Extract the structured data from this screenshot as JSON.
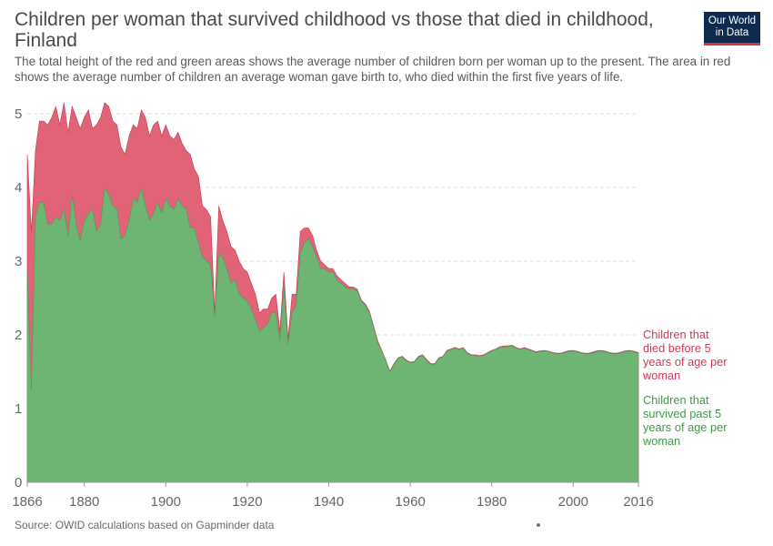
{
  "header": {
    "title": "Children per woman that survived childhood vs those that died in childhood, Finland",
    "subtitle": "The total height of the red and green areas shows the average number of children born per woman up to the present. The area in red shows the average number of children an average woman gave birth to, who died within the first five years of life.",
    "logo_line1": "Our World",
    "logo_line2": "in Data"
  },
  "footer": {
    "source": "Source: OWID calculations based on Gapminder data"
  },
  "colors": {
    "died": "#e06377",
    "died_line": "#c7374f",
    "survived": "#6eb574",
    "survived_line": "#4f9b58",
    "grid": "#dddddd"
  },
  "chart_data": {
    "type": "area",
    "stacked": true,
    "xlabel": "",
    "ylabel": "",
    "xlim": [
      1866,
      2016
    ],
    "ylim": [
      0,
      5
    ],
    "x_ticks": [
      "1866",
      "1880",
      "1900",
      "1920",
      "1940",
      "1960",
      "1980",
      "2000",
      "2016"
    ],
    "y_ticks": [
      "0",
      "1",
      "2",
      "3",
      "4",
      "5"
    ],
    "grid": "horizontal dashed",
    "legend": "right, inline labels",
    "series": [
      {
        "name": "Children that survived past 5 years of age per woman",
        "points": [
          [
            1866,
            2.85
          ],
          [
            1867,
            1.25
          ],
          [
            1868,
            3.6
          ],
          [
            1869,
            3.8
          ],
          [
            1870,
            3.8
          ],
          [
            1871,
            3.5
          ],
          [
            1872,
            3.5
          ],
          [
            1873,
            3.6
          ],
          [
            1874,
            3.55
          ],
          [
            1875,
            3.7
          ],
          [
            1876,
            3.35
          ],
          [
            1877,
            3.9
          ],
          [
            1878,
            3.5
          ],
          [
            1879,
            3.27
          ],
          [
            1880,
            3.55
          ],
          [
            1881,
            3.65
          ],
          [
            1882,
            3.7
          ],
          [
            1883,
            3.4
          ],
          [
            1884,
            3.5
          ],
          [
            1885,
            4.0
          ],
          [
            1886,
            3.9
          ],
          [
            1887,
            3.75
          ],
          [
            1888,
            3.7
          ],
          [
            1889,
            3.3
          ],
          [
            1890,
            3.35
          ],
          [
            1891,
            3.55
          ],
          [
            1892,
            3.85
          ],
          [
            1893,
            3.8
          ],
          [
            1894,
            4.0
          ],
          [
            1895,
            3.75
          ],
          [
            1896,
            3.55
          ],
          [
            1897,
            3.65
          ],
          [
            1898,
            3.8
          ],
          [
            1899,
            3.65
          ],
          [
            1900,
            3.85
          ],
          [
            1901,
            3.75
          ],
          [
            1902,
            3.7
          ],
          [
            1903,
            3.85
          ],
          [
            1904,
            3.75
          ],
          [
            1905,
            3.7
          ],
          [
            1906,
            3.45
          ],
          [
            1907,
            3.45
          ],
          [
            1908,
            3.25
          ],
          [
            1909,
            3.05
          ],
          [
            1910,
            3.0
          ],
          [
            1911,
            2.95
          ],
          [
            1912,
            2.25
          ],
          [
            1913,
            3.1
          ],
          [
            1914,
            3.05
          ],
          [
            1915,
            2.9
          ],
          [
            1916,
            2.7
          ],
          [
            1917,
            2.75
          ],
          [
            1918,
            2.55
          ],
          [
            1919,
            2.5
          ],
          [
            1920,
            2.45
          ],
          [
            1921,
            2.35
          ],
          [
            1922,
            2.2
          ],
          [
            1923,
            2.05
          ],
          [
            1924,
            2.1
          ],
          [
            1925,
            2.15
          ],
          [
            1926,
            2.3
          ],
          [
            1927,
            2.3
          ],
          [
            1928,
            1.92
          ],
          [
            1929,
            2.65
          ],
          [
            1930,
            1.87
          ],
          [
            1931,
            2.3
          ],
          [
            1932,
            2.4
          ],
          [
            1933,
            3.1
          ],
          [
            1934,
            3.25
          ],
          [
            1935,
            3.3
          ],
          [
            1936,
            3.2
          ],
          [
            1937,
            3.05
          ],
          [
            1938,
            2.9
          ],
          [
            1939,
            2.9
          ],
          [
            1940,
            2.85
          ],
          [
            1941,
            2.85
          ],
          [
            1942,
            2.75
          ],
          [
            1943,
            2.7
          ],
          [
            1944,
            2.65
          ],
          [
            1945,
            2.62
          ],
          [
            1946,
            2.62
          ],
          [
            1947,
            2.6
          ],
          [
            1948,
            2.45
          ],
          [
            1949,
            2.4
          ],
          [
            1950,
            2.3
          ],
          [
            1951,
            2.1
          ],
          [
            1952,
            1.9
          ],
          [
            1953,
            1.78
          ],
          [
            1954,
            1.65
          ],
          [
            1955,
            1.5
          ],
          [
            1956,
            1.6
          ],
          [
            1957,
            1.68
          ],
          [
            1958,
            1.7
          ],
          [
            1959,
            1.65
          ],
          [
            1960,
            1.62
          ],
          [
            1961,
            1.63
          ],
          [
            1962,
            1.7
          ],
          [
            1963,
            1.72
          ],
          [
            1964,
            1.66
          ],
          [
            1965,
            1.6
          ],
          [
            1966,
            1.6
          ],
          [
            1967,
            1.68
          ],
          [
            1968,
            1.7
          ],
          [
            1969,
            1.78
          ],
          [
            1970,
            1.8
          ],
          [
            1971,
            1.82
          ],
          [
            1972,
            1.8
          ],
          [
            1973,
            1.82
          ],
          [
            1974,
            1.75
          ],
          [
            1975,
            1.72
          ],
          [
            1976,
            1.72
          ],
          [
            1977,
            1.71
          ],
          [
            1978,
            1.72
          ],
          [
            1979,
            1.75
          ],
          [
            1980,
            1.78
          ],
          [
            1981,
            1.8
          ],
          [
            1982,
            1.83
          ],
          [
            1983,
            1.84
          ],
          [
            1984,
            1.84
          ],
          [
            1985,
            1.85
          ],
          [
            1986,
            1.82
          ],
          [
            1987,
            1.8
          ],
          [
            1988,
            1.82
          ],
          [
            1989,
            1.8
          ],
          [
            1990,
            1.78
          ],
          [
            1991,
            1.76
          ]
        ]
      },
      {
        "name": "Children that died before 5 years of age per woman",
        "points": [
          [
            1866,
            4.45
          ],
          [
            1867,
            3.4
          ],
          [
            1868,
            4.5
          ],
          [
            1869,
            4.9
          ],
          [
            1870,
            4.9
          ],
          [
            1871,
            4.85
          ],
          [
            1872,
            4.95
          ],
          [
            1873,
            5.1
          ],
          [
            1874,
            4.85
          ],
          [
            1875,
            5.15
          ],
          [
            1876,
            4.75
          ],
          [
            1877,
            5.1
          ],
          [
            1878,
            4.95
          ],
          [
            1879,
            4.8
          ],
          [
            1880,
            4.95
          ],
          [
            1881,
            5.05
          ],
          [
            1882,
            4.8
          ],
          [
            1883,
            4.85
          ],
          [
            1884,
            4.95
          ],
          [
            1885,
            5.15
          ],
          [
            1886,
            5.1
          ],
          [
            1887,
            4.9
          ],
          [
            1888,
            4.85
          ],
          [
            1889,
            4.55
          ],
          [
            1890,
            4.45
          ],
          [
            1891,
            4.7
          ],
          [
            1892,
            4.85
          ],
          [
            1893,
            4.8
          ],
          [
            1894,
            5.05
          ],
          [
            1895,
            4.95
          ],
          [
            1896,
            4.7
          ],
          [
            1897,
            4.85
          ],
          [
            1898,
            4.9
          ],
          [
            1899,
            4.7
          ],
          [
            1900,
            4.85
          ],
          [
            1901,
            4.7
          ],
          [
            1902,
            4.65
          ],
          [
            1903,
            4.75
          ],
          [
            1904,
            4.6
          ],
          [
            1905,
            4.5
          ],
          [
            1906,
            4.45
          ],
          [
            1907,
            4.25
          ],
          [
            1908,
            4.15
          ],
          [
            1909,
            3.75
          ],
          [
            1910,
            3.7
          ],
          [
            1911,
            3.6
          ],
          [
            1912,
            2.3
          ],
          [
            1913,
            3.75
          ],
          [
            1914,
            3.55
          ],
          [
            1915,
            3.4
          ],
          [
            1916,
            3.2
          ],
          [
            1917,
            3.15
          ],
          [
            1918,
            3.0
          ],
          [
            1919,
            2.9
          ],
          [
            1920,
            2.85
          ],
          [
            1921,
            2.7
          ],
          [
            1922,
            2.55
          ],
          [
            1923,
            2.3
          ],
          [
            1924,
            2.35
          ],
          [
            1925,
            2.35
          ],
          [
            1926,
            2.5
          ],
          [
            1927,
            2.55
          ],
          [
            1928,
            2.05
          ],
          [
            1929,
            2.85
          ],
          [
            1930,
            1.95
          ],
          [
            1931,
            2.55
          ],
          [
            1932,
            2.55
          ],
          [
            1933,
            3.4
          ],
          [
            1934,
            3.45
          ],
          [
            1935,
            3.45
          ],
          [
            1936,
            3.35
          ],
          [
            1937,
            3.15
          ],
          [
            1938,
            3.0
          ],
          [
            1939,
            2.95
          ],
          [
            1940,
            2.9
          ],
          [
            1941,
            2.9
          ],
          [
            1942,
            2.8
          ],
          [
            1943,
            2.75
          ],
          [
            1944,
            2.7
          ],
          [
            1945,
            2.65
          ],
          [
            1946,
            2.65
          ],
          [
            1947,
            2.62
          ],
          [
            1948,
            2.47
          ],
          [
            1949,
            2.42
          ],
          [
            1950,
            2.32
          ],
          [
            1951,
            2.12
          ],
          [
            1952,
            1.92
          ],
          [
            1953,
            1.79
          ],
          [
            1954,
            1.66
          ],
          [
            1955,
            1.51
          ],
          [
            1956,
            1.61
          ],
          [
            1957,
            1.69
          ],
          [
            1958,
            1.71
          ],
          [
            1959,
            1.66
          ],
          [
            1960,
            1.63
          ],
          [
            1961,
            1.64
          ],
          [
            1962,
            1.71
          ],
          [
            1963,
            1.73
          ],
          [
            1964,
            1.67
          ],
          [
            1965,
            1.61
          ],
          [
            1966,
            1.61
          ],
          [
            1967,
            1.69
          ],
          [
            1968,
            1.71
          ],
          [
            1969,
            1.79
          ],
          [
            1970,
            1.81
          ],
          [
            1971,
            1.83
          ],
          [
            1972,
            1.81
          ],
          [
            1973,
            1.83
          ],
          [
            1974,
            1.76
          ],
          [
            1975,
            1.73
          ],
          [
            1976,
            1.73
          ],
          [
            1977,
            1.72
          ],
          [
            1978,
            1.73
          ],
          [
            1979,
            1.76
          ],
          [
            1980,
            1.79
          ],
          [
            1981,
            1.81
          ],
          [
            1982,
            1.84
          ],
          [
            1983,
            1.85
          ],
          [
            1984,
            1.85
          ],
          [
            1985,
            1.86
          ],
          [
            1986,
            1.83
          ],
          [
            1987,
            1.81
          ],
          [
            1988,
            1.83
          ],
          [
            1989,
            1.81
          ],
          [
            1990,
            1.79
          ],
          [
            1991,
            1.77
          ]
        ]
      }
    ],
    "labels": {
      "died": [
        "Children that",
        "died before 5",
        "years of age per",
        "woman"
      ],
      "survived": [
        "Children that",
        "survived past 5",
        "years of age per",
        "woman"
      ]
    }
  }
}
